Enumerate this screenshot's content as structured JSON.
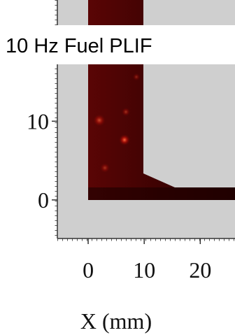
{
  "chart_data": {
    "type": "image",
    "title": "10 Hz Fuel PLIF",
    "xlabel": "X (mm)",
    "xlim": [
      -5.5,
      26.2
    ],
    "ylim": [
      -4.9,
      25.4
    ],
    "xticks": [
      0,
      10,
      20
    ],
    "yticks": [
      0,
      10
    ]
  }
}
